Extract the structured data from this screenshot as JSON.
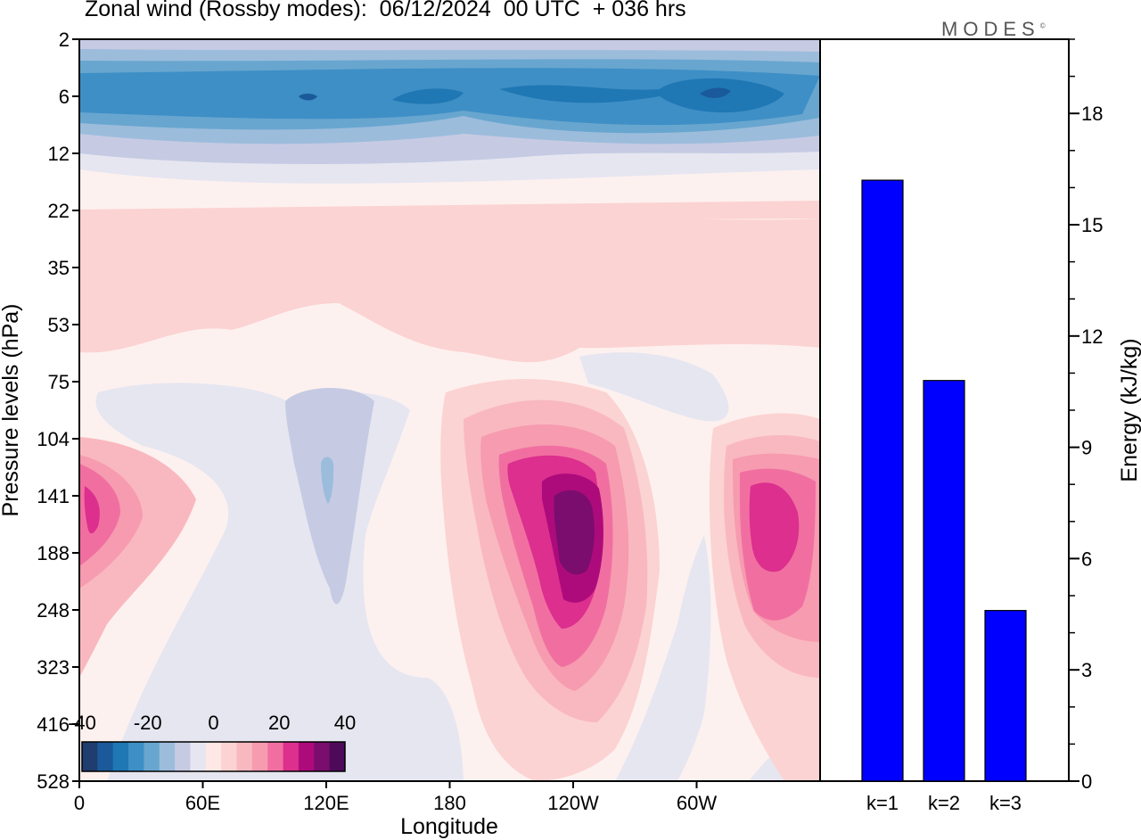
{
  "title": "Zonal wind (Rossby modes):  06/12/2024  00 UTC  + 036 hrs",
  "brand": "MODES",
  "brand_mark": "©",
  "colors": {
    "neg": [
      "#1f3d6e",
      "#1a5a9a",
      "#1f77b4",
      "#3e8fc6",
      "#68a6cf",
      "#9cbcdc",
      "#c6cbe3",
      "#e6e6f1"
    ],
    "pos": [
      "#fde8e6",
      "#fbd3d2",
      "#f9b8bf",
      "#f69bb0",
      "#f16fa0",
      "#dc2f8e",
      "#ad0b7b",
      "#7a0d6e",
      "#4e0a5a"
    ],
    "bars": "#0000ff"
  },
  "chart_data": [
    {
      "type": "heatmap",
      "title": "Zonal wind (Rossby modes):  06/12/2024  00 UTC  + 036 hrs",
      "xlabel": "Longitude",
      "ylabel": "Pressure levels (hPa)",
      "x_ticks": [
        "0",
        "60E",
        "120E",
        "180",
        "120W",
        "60W"
      ],
      "y_ticks": [
        "2",
        "6",
        "12",
        "22",
        "35",
        "53",
        "75",
        "104",
        "141",
        "188",
        "248",
        "323",
        "416",
        "528"
      ],
      "colorbar_labels": [
        "-40",
        "-20",
        "0",
        "20",
        "40"
      ],
      "colorbar_range": [
        -40,
        40
      ],
      "features": [
        {
          "lon": 120,
          "level": "6",
          "value": -30
        },
        {
          "lon": 170,
          "level": "6",
          "value": -30
        },
        {
          "lon": 215,
          "level": "6",
          "value": -30
        },
        {
          "lon": 310,
          "level": "6",
          "value": -30
        },
        {
          "lon": 5,
          "level": "141",
          "value": 25
        },
        {
          "lon": 120,
          "level": "141",
          "value": -15
        },
        {
          "lon": 240,
          "level": "141",
          "value": 35
        },
        {
          "lon": 330,
          "level": "141",
          "value": 25
        }
      ]
    },
    {
      "type": "bar",
      "categories": [
        "k=1",
        "k=2",
        "k=3"
      ],
      "values": [
        16.2,
        10.8,
        4.6
      ],
      "ylabel": "Energy (kJ/kg)",
      "ylim": [
        0,
        20
      ],
      "y_ticks": [
        "0",
        "3",
        "6",
        "9",
        "12",
        "15",
        "18"
      ]
    }
  ]
}
